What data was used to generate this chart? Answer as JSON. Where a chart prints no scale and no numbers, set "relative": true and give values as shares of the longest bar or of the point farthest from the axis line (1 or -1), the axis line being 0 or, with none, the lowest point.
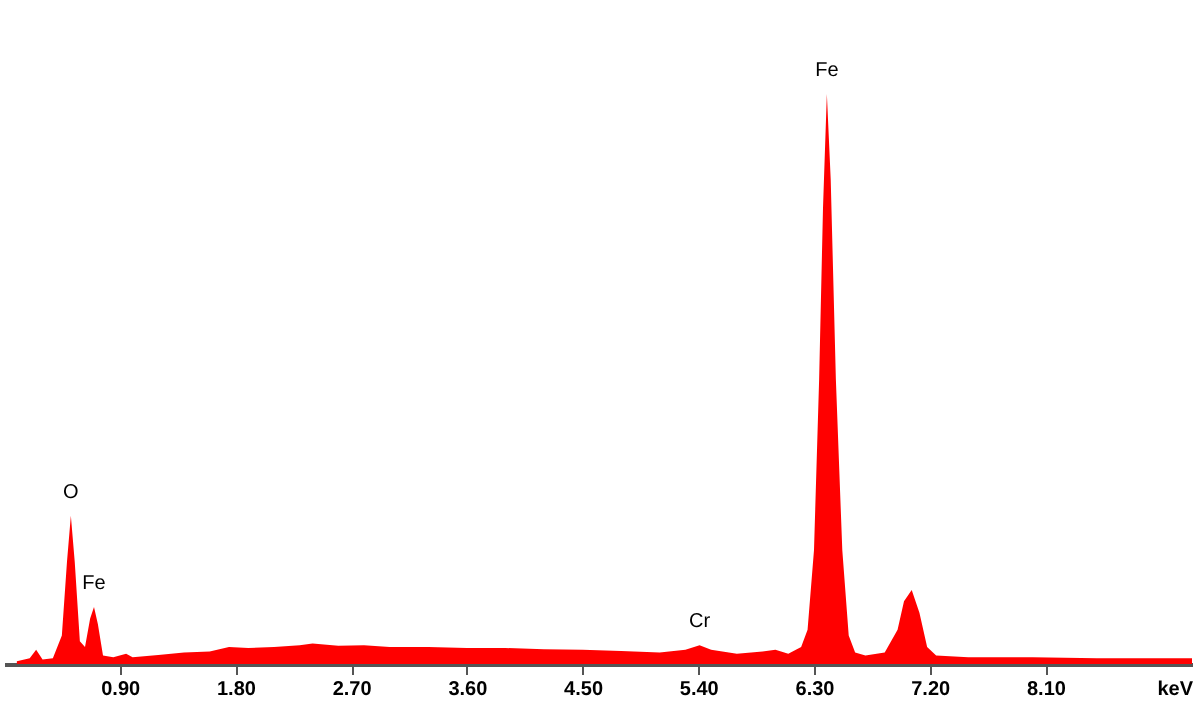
{
  "chart_data": {
    "type": "area",
    "relative": true,
    "xlabel": "keV",
    "color": "#ff0000",
    "xlim": [
      0,
      9.24
    ],
    "xticks": [
      {
        "value": 0.9,
        "label": "0.90"
      },
      {
        "value": 1.8,
        "label": "1.80"
      },
      {
        "value": 2.7,
        "label": "2.70"
      },
      {
        "value": 3.6,
        "label": "3.60"
      },
      {
        "value": 4.5,
        "label": "4.50"
      },
      {
        "value": 5.4,
        "label": "5.40"
      },
      {
        "value": 6.3,
        "label": "6.30"
      },
      {
        "value": 7.2,
        "label": "7.20"
      },
      {
        "value": 8.1,
        "label": "8.10"
      }
    ],
    "x": [
      0.1,
      0.2,
      0.25,
      0.3,
      0.38,
      0.45,
      0.49,
      0.52,
      0.55,
      0.59,
      0.63,
      0.67,
      0.7,
      0.73,
      0.77,
      0.85,
      0.95,
      1.0,
      1.2,
      1.4,
      1.6,
      1.75,
      1.9,
      2.1,
      2.3,
      2.4,
      2.6,
      2.8,
      3.0,
      3.3,
      3.6,
      3.9,
      4.2,
      4.5,
      4.8,
      5.1,
      5.3,
      5.41,
      5.5,
      5.7,
      5.9,
      6.0,
      6.1,
      6.2,
      6.25,
      6.3,
      6.34,
      6.37,
      6.4,
      6.43,
      6.47,
      6.52,
      6.57,
      6.62,
      6.7,
      6.85,
      6.95,
      7.0,
      7.06,
      7.12,
      7.18,
      7.25,
      7.5,
      8.0,
      8.5,
      9.0,
      9.24
    ],
    "values": [
      0.005,
      0.01,
      0.025,
      0.008,
      0.01,
      0.05,
      0.18,
      0.26,
      0.18,
      0.04,
      0.03,
      0.08,
      0.1,
      0.07,
      0.015,
      0.012,
      0.018,
      0.012,
      0.016,
      0.02,
      0.022,
      0.03,
      0.028,
      0.03,
      0.033,
      0.036,
      0.032,
      0.033,
      0.03,
      0.03,
      0.028,
      0.028,
      0.026,
      0.025,
      0.023,
      0.02,
      0.025,
      0.033,
      0.025,
      0.018,
      0.022,
      0.025,
      0.018,
      0.03,
      0.06,
      0.2,
      0.5,
      0.8,
      1,
      0.85,
      0.5,
      0.2,
      0.05,
      0.02,
      0.015,
      0.02,
      0.06,
      0.11,
      0.13,
      0.09,
      0.03,
      0.015,
      0.012,
      0.012,
      0.01,
      0.01,
      0.01
    ],
    "annotations": [
      {
        "text": "O",
        "x": 0.52,
        "y": 0.26
      },
      {
        "text": "Fe",
        "x": 0.7,
        "y": 0.1
      },
      {
        "text": "Cr",
        "x": 5.41,
        "y": 0.033
      },
      {
        "text": "Fe",
        "x": 6.4,
        "y": 1
      }
    ]
  }
}
